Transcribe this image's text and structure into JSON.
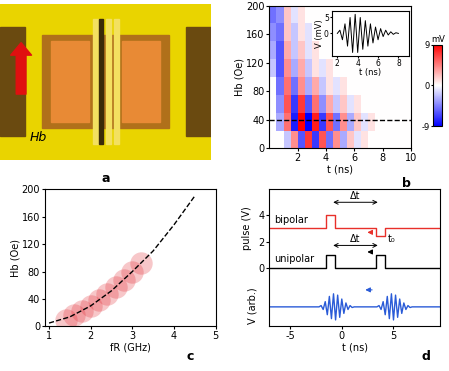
{
  "chart_data": [
    {
      "type": "image",
      "title": "a",
      "annotations": [
        "Hb"
      ]
    },
    {
      "type": "heatmap",
      "title": "b",
      "x_label": "t (ns)",
      "y_label": "Hb (Oe)",
      "xlim": [
        0,
        10
      ],
      "xticks": [
        2,
        4,
        6,
        8,
        10
      ],
      "ylim": [
        0,
        200
      ],
      "yticks": [
        0,
        40,
        80,
        120,
        160,
        200
      ],
      "x_edges": [
        0,
        0.5,
        1,
        1.5,
        2,
        2.5,
        3,
        3.5,
        4,
        4.5,
        5,
        5.5,
        6,
        6.5,
        7,
        7.5,
        8,
        8.5,
        9,
        9.5,
        10
      ],
      "y_edges": [
        0,
        25,
        50,
        75,
        100,
        125,
        150,
        175,
        200
      ],
      "cells": [
        [
          0,
          0,
          -2,
          4,
          -6,
          7,
          -7,
          6,
          -5,
          4,
          -3,
          2,
          -1,
          1,
          0,
          0,
          0,
          0,
          0,
          0
        ],
        [
          0,
          -3,
          5,
          -8,
          9,
          -9,
          8,
          -7,
          6,
          -5,
          4,
          -3,
          2,
          -1,
          1,
          0,
          0,
          0,
          0,
          0
        ],
        [
          0,
          -4,
          6,
          -7,
          7,
          -6,
          5,
          -4,
          3,
          -2,
          2,
          -1,
          1,
          0,
          0,
          0,
          0,
          0,
          0,
          0
        ],
        [
          0,
          -5,
          5,
          -5,
          4,
          -3,
          3,
          -2,
          1,
          -1,
          1,
          0,
          0,
          0,
          0,
          0,
          0,
          0,
          0,
          0
        ],
        [
          -2,
          -6,
          4,
          -3,
          3,
          -2,
          1,
          -1,
          1,
          0,
          0,
          0,
          0,
          0,
          0,
          0,
          0,
          0,
          0,
          0
        ],
        [
          -3,
          -6,
          3,
          -2,
          2,
          -1,
          1,
          0,
          0,
          0,
          0,
          0,
          0,
          0,
          0,
          0,
          0,
          0,
          0,
          0
        ],
        [
          -4,
          -5,
          2,
          -2,
          1,
          -1,
          0,
          0,
          0,
          0,
          0,
          0,
          0,
          0,
          0,
          0,
          0,
          0,
          0,
          0
        ],
        [
          -5,
          -4,
          2,
          -1,
          1,
          0,
          0,
          0,
          0,
          0,
          0,
          0,
          0,
          0,
          0,
          0,
          0,
          0,
          0,
          0
        ]
      ],
      "dashed_line": 40,
      "colorbar": {
        "range": [
          -9,
          9
        ],
        "ticks": [
          -9,
          0,
          9
        ],
        "label": "mV"
      }
    },
    {
      "type": "line",
      "x_label": "t (ns)",
      "y_label": "V (mV)",
      "xlim": [
        1.5,
        9
      ],
      "xticks": [
        2,
        4,
        6,
        8
      ],
      "ylim": [
        -7,
        7
      ],
      "yticks": [
        0,
        5
      ],
      "x": [
        2.0,
        2.25,
        2.5,
        2.75,
        3.0,
        3.25,
        3.5,
        3.75,
        4.0,
        4.25,
        4.5,
        4.75,
        5.0,
        5.25,
        5.5,
        5.75,
        6.0,
        6.25,
        6.5,
        6.75,
        7.0,
        7.25,
        7.5,
        7.75,
        8.0
      ],
      "values": [
        0,
        1,
        -2,
        3,
        -4,
        5,
        -6,
        6,
        -6,
        5,
        -5,
        4,
        -4,
        3,
        -3,
        2,
        -2,
        1.5,
        -1,
        1,
        -0.5,
        0.5,
        -0.3,
        0.2,
        0
      ],
      "color": "#000000"
    },
    {
      "type": "scatter",
      "title": "c",
      "x_label": "fR (GHz)",
      "y_label": "Hb (Oe)",
      "xlim": [
        0.9,
        5
      ],
      "xticks": [
        1,
        2,
        3,
        4,
        5
      ],
      "ylim": [
        0,
        200
      ],
      "yticks": [
        0,
        40,
        80,
        120,
        160,
        200
      ],
      "series": [
        {
          "type": "scatter",
          "color": "#e0202a",
          "x": [
            1.4,
            1.6,
            1.8,
            2.0,
            2.2,
            2.4,
            2.6,
            2.8,
            3.0,
            3.2
          ],
          "values": [
            10,
            16,
            22,
            30,
            38,
            48,
            58,
            68,
            80,
            92
          ]
        },
        {
          "type": "line",
          "color": "#000000",
          "line_style": "dashed",
          "x": [
            1.0,
            1.5,
            2.0,
            2.5,
            3.0,
            3.5,
            4.0,
            4.5
          ],
          "values": [
            5,
            14,
            30,
            52,
            80,
            110,
            148,
            190
          ]
        }
      ]
    },
    {
      "type": "line",
      "title": "d",
      "x_label": "t (ns)",
      "y_label": "pulse (V)",
      "y_label_lower": "V (arb.)",
      "xlim": [
        -7,
        9.5
      ],
      "xticks": [
        -5,
        0,
        5
      ],
      "ylim": [
        -4.5,
        6
      ],
      "yticks": [
        0,
        2,
        4
      ],
      "annotations": [
        "Δt",
        "Δt",
        "t₀"
      ],
      "series": [
        {
          "name": "bipolar",
          "color": "#e8302a",
          "x": [
            -7,
            -1.5,
            -1.5,
            -0.7,
            -0.7,
            3.3,
            3.3,
            4.2,
            4.2,
            9.5
          ],
          "values": [
            3,
            3,
            4,
            4,
            3,
            3,
            2.4,
            2.4,
            3,
            3
          ]
        },
        {
          "name": "unipolar",
          "color": "#000000",
          "x": [
            -7,
            -1.5,
            -1.5,
            -0.7,
            -0.7,
            3.3,
            3.3,
            4.2,
            4.2,
            9.5
          ],
          "values": [
            0,
            0,
            1,
            1,
            0,
            0,
            1,
            1,
            0,
            0
          ]
        },
        {
          "color": "#2a5bd7",
          "x": [
            -7,
            -2.2,
            -2.0,
            -1.8,
            -1.6,
            -1.4,
            -1.2,
            -1.0,
            -0.8,
            -0.6,
            -0.4,
            -0.2,
            0.0,
            0.2,
            0.4,
            0.6,
            0.8,
            1.0,
            1.2,
            3.4,
            3.6,
            3.8,
            4.0,
            4.2,
            4.4,
            4.6,
            4.8,
            5.0,
            5.2,
            5.4,
            5.6,
            5.8,
            6.0,
            6.2,
            6.4,
            6.6,
            6.8,
            9.5
          ],
          "values": [
            -3,
            -3,
            -2.9,
            -3.2,
            -2.6,
            -3.6,
            -2.2,
            -3.9,
            -2.0,
            -4.0,
            -2.1,
            -3.8,
            -2.4,
            -3.5,
            -2.7,
            -3.2,
            -2.9,
            -3.05,
            -3,
            -3,
            -2.9,
            -3.2,
            -2.6,
            -3.6,
            -2.2,
            -3.9,
            -2.0,
            -4.0,
            -2.1,
            -3.8,
            -2.4,
            -3.5,
            -2.7,
            -3.2,
            -2.9,
            -3.05,
            -3,
            -3
          ]
        }
      ]
    }
  ]
}
